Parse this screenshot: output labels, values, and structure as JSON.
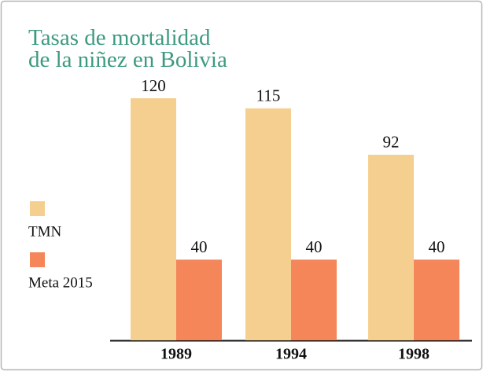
{
  "chart_data": {
    "type": "bar",
    "title": [
      "Tasas de mortalidad",
      "de la niñez en Bolivia"
    ],
    "categories": [
      "1989",
      "1994",
      "1998"
    ],
    "series": [
      {
        "name": "TMN",
        "color": "#f5cf8f",
        "values": [
          120,
          115,
          92
        ]
      },
      {
        "name": "Meta 2015",
        "color": "#f4865a",
        "values": [
          40,
          40,
          40
        ]
      }
    ]
  }
}
